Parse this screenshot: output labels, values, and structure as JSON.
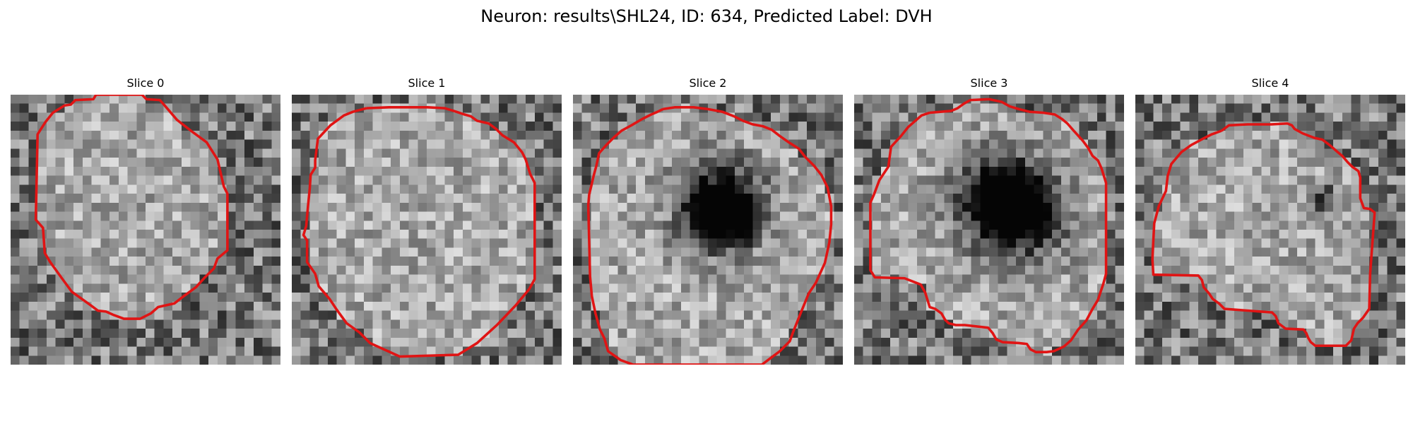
{
  "figure": {
    "title": "Neuron: results\\SHL24, ID: 634, Predicted Label: DVH"
  },
  "grid_cells": 30,
  "outline_color": "#e01414",
  "slices": [
    {
      "title": "Slice 0",
      "seed": 11,
      "dark_blobs": [],
      "outline": [
        [
          9.5,
          0
        ],
        [
          9.2,
          0.5
        ],
        [
          7.2,
          0.6
        ],
        [
          6.7,
          1.1
        ],
        [
          6.0,
          1.2
        ],
        [
          4.7,
          2.0
        ],
        [
          3.9,
          3.0
        ],
        [
          3.0,
          4.4
        ],
        [
          2.8,
          13.9
        ],
        [
          3.6,
          14.8
        ],
        [
          3.8,
          17.6
        ],
        [
          4.4,
          18.6
        ],
        [
          5.7,
          20.4
        ],
        [
          6.8,
          21.9
        ],
        [
          8.9,
          23.4
        ],
        [
          9.7,
          24.0
        ],
        [
          10.6,
          24.1
        ],
        [
          11.5,
          24.5
        ],
        [
          12.6,
          24.9
        ],
        [
          14.4,
          24.9
        ],
        [
          15.6,
          24.3
        ],
        [
          16.4,
          23.6
        ],
        [
          18.2,
          23.2
        ],
        [
          19.1,
          22.5
        ],
        [
          20.6,
          21.4
        ],
        [
          21.6,
          20.3
        ],
        [
          22.6,
          19.3
        ],
        [
          23.0,
          18.2
        ],
        [
          24.1,
          17.3
        ],
        [
          24.1,
          11.0
        ],
        [
          23.7,
          10.2
        ],
        [
          23.0,
          7.2
        ],
        [
          21.8,
          5.3
        ],
        [
          20.3,
          4.2
        ],
        [
          18.5,
          2.8
        ],
        [
          17.3,
          1.4
        ],
        [
          16.6,
          0.6
        ],
        [
          15.1,
          0.5
        ],
        [
          14.6,
          0.0
        ]
      ]
    },
    {
      "title": "Slice 1",
      "seed": 23,
      "dark_blobs": [],
      "outline": [
        [
          8.3,
          1.5
        ],
        [
          6.8,
          1.9
        ],
        [
          5.8,
          2.3
        ],
        [
          4.3,
          3.4
        ],
        [
          2.9,
          4.9
        ],
        [
          2.6,
          7.3
        ],
        [
          2.6,
          8.1
        ],
        [
          2.1,
          8.9
        ],
        [
          2.0,
          10.4
        ],
        [
          1.8,
          12.4
        ],
        [
          1.6,
          14.6
        ],
        [
          1.3,
          15.6
        ],
        [
          1.7,
          16.2
        ],
        [
          1.7,
          18.6
        ],
        [
          2.6,
          19.9
        ],
        [
          3.0,
          21.3
        ],
        [
          4.2,
          22.7
        ],
        [
          5.0,
          23.9
        ],
        [
          6.1,
          25.4
        ],
        [
          7.5,
          26.4
        ],
        [
          8.7,
          27.6
        ],
        [
          12.0,
          29.1
        ],
        [
          18.5,
          28.9
        ],
        [
          20.6,
          27.6
        ],
        [
          22.8,
          25.6
        ],
        [
          24.9,
          23.4
        ],
        [
          26.4,
          21.6
        ],
        [
          27.0,
          20.5
        ],
        [
          27.0,
          9.8
        ],
        [
          26.5,
          8.8
        ],
        [
          26.0,
          7.2
        ],
        [
          25.6,
          6.4
        ],
        [
          24.7,
          5.3
        ],
        [
          23.4,
          4.5
        ],
        [
          22.7,
          3.8
        ],
        [
          21.9,
          3.2
        ],
        [
          20.6,
          2.9
        ],
        [
          19.9,
          2.4
        ],
        [
          19.2,
          2.2
        ],
        [
          18.3,
          1.9
        ],
        [
          17.0,
          1.5
        ],
        [
          15.1,
          1.4
        ],
        [
          10.8,
          1.4
        ]
      ]
    },
    {
      "title": "Slice 2",
      "seed": 37,
      "dark_blobs": [
        [
          16.5,
          12.0,
          3.2,
          0.75
        ],
        [
          18.5,
          14.0,
          1.8,
          0.45
        ],
        [
          15.0,
          14.5,
          2.0,
          0.35
        ]
      ],
      "outline": [
        [
          10.0,
          1.6
        ],
        [
          9.4,
          1.9
        ],
        [
          8.7,
          2.2
        ],
        [
          7.7,
          2.7
        ],
        [
          6.5,
          3.4
        ],
        [
          5.4,
          4.0
        ],
        [
          4.6,
          4.7
        ],
        [
          3.7,
          5.6
        ],
        [
          2.9,
          6.5
        ],
        [
          2.6,
          7.9
        ],
        [
          2.3,
          9.0
        ],
        [
          2.0,
          10.3
        ],
        [
          1.8,
          11.1
        ],
        [
          1.7,
          12.3
        ],
        [
          1.9,
          20.2
        ],
        [
          2.1,
          22.4
        ],
        [
          2.5,
          24.3
        ],
        [
          3.0,
          26.1
        ],
        [
          3.5,
          27.1
        ],
        [
          3.9,
          28.5
        ],
        [
          5.3,
          29.5
        ],
        [
          6.7,
          30.0
        ],
        [
          21.0,
          30.0
        ],
        [
          21.8,
          29.4
        ],
        [
          23.0,
          28.5
        ],
        [
          24.1,
          27.4
        ],
        [
          24.5,
          26.3
        ],
        [
          25.3,
          24.3
        ],
        [
          26.2,
          22.1
        ],
        [
          27.0,
          20.9
        ],
        [
          28.0,
          18.7
        ],
        [
          28.5,
          16.4
        ],
        [
          28.7,
          14.4
        ],
        [
          28.7,
          12.4
        ],
        [
          28.3,
          10.3
        ],
        [
          27.6,
          8.9
        ],
        [
          26.8,
          7.9
        ],
        [
          25.8,
          6.9
        ],
        [
          25.1,
          6.0
        ],
        [
          24.0,
          5.3
        ],
        [
          23.0,
          4.6
        ],
        [
          22.1,
          3.9
        ],
        [
          21.1,
          3.5
        ],
        [
          20.0,
          3.3
        ],
        [
          18.9,
          2.9
        ],
        [
          17.9,
          2.4
        ],
        [
          16.6,
          1.9
        ],
        [
          15.0,
          1.6
        ],
        [
          13.4,
          1.4
        ],
        [
          11.3,
          1.4
        ]
      ]
    },
    {
      "title": "Slice 3",
      "seed": 41,
      "dark_blobs": [
        [
          17.5,
          12.5,
          4.0,
          0.7
        ],
        [
          15.5,
          11.0,
          2.2,
          0.4
        ],
        [
          19.5,
          13.5,
          2.2,
          0.4
        ]
      ],
      "outline": [
        [
          8.4,
          2.0
        ],
        [
          7.5,
          2.3
        ],
        [
          6.8,
          2.9
        ],
        [
          6.0,
          3.6
        ],
        [
          5.2,
          4.6
        ],
        [
          4.1,
          5.8
        ],
        [
          3.8,
          8.0
        ],
        [
          2.8,
          9.5
        ],
        [
          2.2,
          11.1
        ],
        [
          1.8,
          12.0
        ],
        [
          1.8,
          19.5
        ],
        [
          2.3,
          20.3
        ],
        [
          5.6,
          20.4
        ],
        [
          7.4,
          21.1
        ],
        [
          7.9,
          22.0
        ],
        [
          8.4,
          23.6
        ],
        [
          9.0,
          23.8
        ],
        [
          9.7,
          24.3
        ],
        [
          10.1,
          25.0
        ],
        [
          10.5,
          25.4
        ],
        [
          11.3,
          25.6
        ],
        [
          12.3,
          25.6
        ],
        [
          14.9,
          25.9
        ],
        [
          15.4,
          26.5
        ],
        [
          15.8,
          27.2
        ],
        [
          16.5,
          27.5
        ],
        [
          18.3,
          27.6
        ],
        [
          19.2,
          27.7
        ],
        [
          19.6,
          28.3
        ],
        [
          20.2,
          28.6
        ],
        [
          21.4,
          28.6
        ],
        [
          22.2,
          28.5
        ],
        [
          23.3,
          28.0
        ],
        [
          24.1,
          27.3
        ],
        [
          24.9,
          26.1
        ],
        [
          25.8,
          25.1
        ],
        [
          26.5,
          23.8
        ],
        [
          27.1,
          22.8
        ],
        [
          27.7,
          21.0
        ],
        [
          28.0,
          19.9
        ],
        [
          28.0,
          9.8
        ],
        [
          27.5,
          8.2
        ],
        [
          27.1,
          7.3
        ],
        [
          26.5,
          6.8
        ],
        [
          26.0,
          5.9
        ],
        [
          25.4,
          5.1
        ],
        [
          24.4,
          4.0
        ],
        [
          23.7,
          3.2
        ],
        [
          23.1,
          2.7
        ],
        [
          22.3,
          2.2
        ],
        [
          21.0,
          2.0
        ],
        [
          19.5,
          1.9
        ],
        [
          18.3,
          1.6
        ],
        [
          17.3,
          1.3
        ],
        [
          16.4,
          0.8
        ],
        [
          15.0,
          0.5
        ],
        [
          12.9,
          0.6
        ],
        [
          12.2,
          1.0
        ],
        [
          11.5,
          1.5
        ],
        [
          10.8,
          1.8
        ]
      ]
    },
    {
      "title": "Slice 4",
      "seed": 53,
      "dark_blobs": [
        [
          21.0,
          11.5,
          1.2,
          0.45
        ]
      ],
      "outline": [
        [
          9.6,
          4.0
        ],
        [
          8.5,
          4.4
        ],
        [
          7.5,
          4.9
        ],
        [
          6.2,
          5.6
        ],
        [
          5.1,
          6.4
        ],
        [
          4.0,
          7.7
        ],
        [
          3.6,
          9.0
        ],
        [
          3.4,
          10.7
        ],
        [
          2.6,
          12.4
        ],
        [
          2.1,
          14.3
        ],
        [
          2.0,
          16.2
        ],
        [
          1.9,
          18.3
        ],
        [
          2.0,
          20.0
        ],
        [
          7.0,
          20.1
        ],
        [
          7.4,
          20.6
        ],
        [
          7.6,
          21.4
        ],
        [
          8.2,
          22.1
        ],
        [
          8.6,
          22.7
        ],
        [
          9.3,
          23.2
        ],
        [
          9.9,
          23.8
        ],
        [
          15.2,
          24.2
        ],
        [
          15.6,
          24.6
        ],
        [
          15.9,
          25.4
        ],
        [
          16.7,
          26.0
        ],
        [
          18.7,
          26.1
        ],
        [
          19.0,
          26.5
        ],
        [
          19.2,
          27.0
        ],
        [
          19.5,
          27.5
        ],
        [
          20.0,
          27.9
        ],
        [
          23.4,
          27.9
        ],
        [
          24.0,
          27.3
        ],
        [
          24.3,
          26.0
        ],
        [
          24.7,
          25.4
        ],
        [
          25.3,
          24.8
        ],
        [
          26.0,
          23.8
        ],
        [
          26.1,
          19.9
        ],
        [
          26.6,
          13.1
        ],
        [
          26.1,
          12.7
        ],
        [
          25.4,
          12.6
        ],
        [
          25.0,
          11.5
        ],
        [
          25.0,
          9.2
        ],
        [
          24.8,
          8.5
        ],
        [
          24.1,
          8.0
        ],
        [
          23.6,
          7.5
        ],
        [
          23.0,
          6.8
        ],
        [
          22.4,
          6.3
        ],
        [
          21.6,
          5.6
        ],
        [
          20.8,
          5.0
        ],
        [
          19.9,
          4.8
        ],
        [
          18.6,
          4.3
        ],
        [
          17.7,
          3.8
        ],
        [
          17.4,
          3.4
        ],
        [
          16.9,
          3.2
        ],
        [
          15.1,
          3.3
        ],
        [
          12.5,
          3.3
        ],
        [
          10.4,
          3.4
        ]
      ]
    }
  ]
}
